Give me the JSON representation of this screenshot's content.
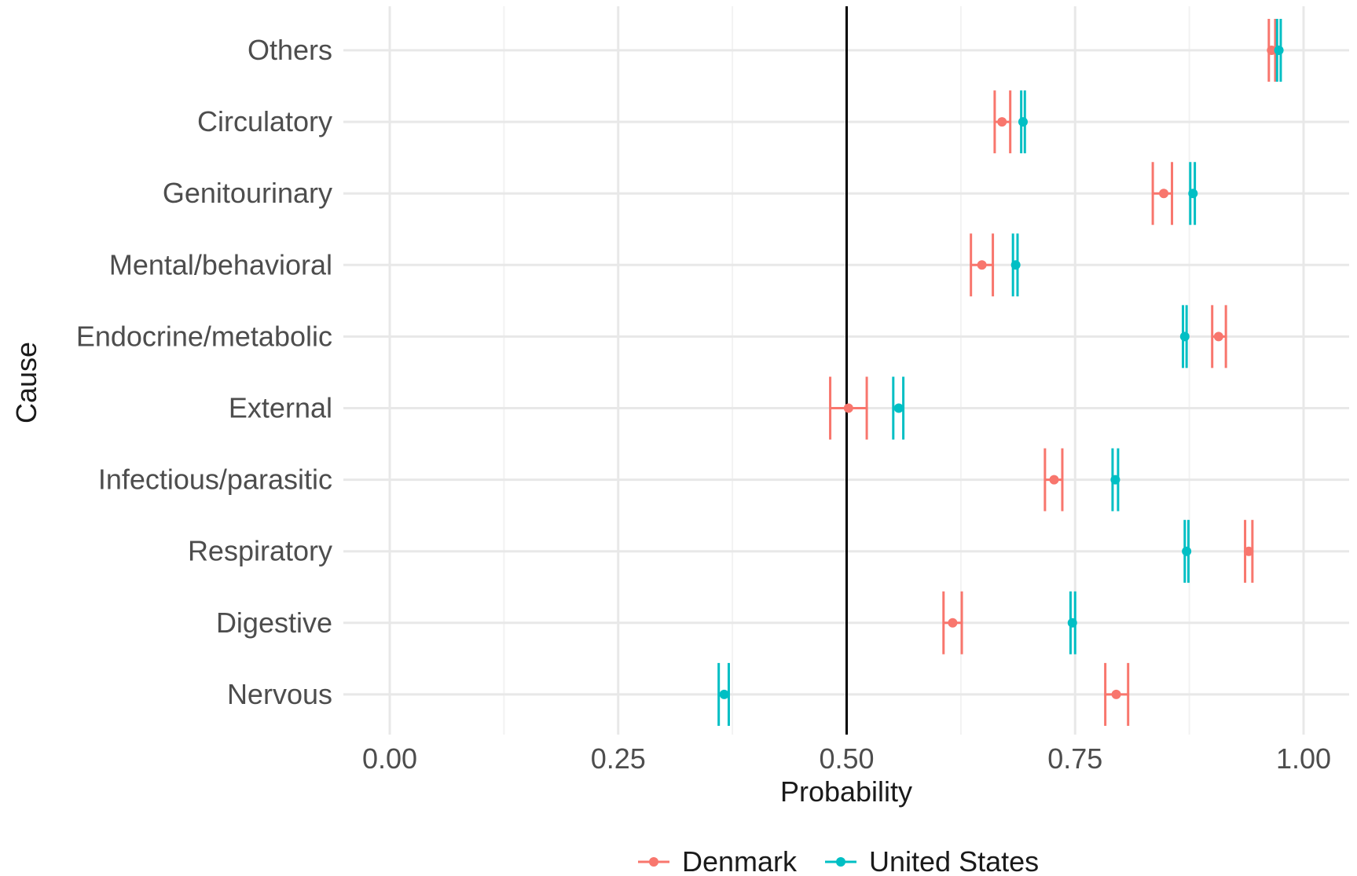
{
  "chart_data": {
    "type": "scatter",
    "subtype": "dot-with-error-bars",
    "orientation": "horizontal",
    "title": "",
    "xlabel": "Probability",
    "ylabel": "Cause",
    "xlim": [
      -0.05,
      1.05
    ],
    "x_ticks": [
      0.0,
      0.25,
      0.5,
      0.75,
      1.0
    ],
    "x_tick_labels": [
      "0.00",
      "0.25",
      "0.50",
      "0.75",
      "1.00"
    ],
    "reference_line": {
      "x": 0.5,
      "color": "#000000"
    },
    "categories": [
      "Others",
      "Circulatory",
      "Genitourinary",
      "Mental/behavioral",
      "Endocrine/metabolic",
      "External",
      "Infectious/parasitic",
      "Respiratory",
      "Digestive",
      "Nervous"
    ],
    "series": [
      {
        "name": "Denmark",
        "color": "#F8766D",
        "values": [
          0.965,
          0.67,
          0.847,
          0.648,
          0.907,
          0.502,
          0.727,
          0.94,
          0.616,
          0.795
        ],
        "lower": [
          0.962,
          0.662,
          0.835,
          0.636,
          0.9,
          0.482,
          0.717,
          0.936,
          0.606,
          0.783
        ],
        "upper": [
          0.969,
          0.679,
          0.856,
          0.66,
          0.915,
          0.522,
          0.736,
          0.944,
          0.626,
          0.808
        ]
      },
      {
        "name": "United States",
        "color": "#00BFC4",
        "values": [
          0.973,
          0.693,
          0.879,
          0.685,
          0.87,
          0.557,
          0.794,
          0.872,
          0.747,
          0.366
        ],
        "lower": [
          0.971,
          0.691,
          0.876,
          0.682,
          0.868,
          0.551,
          0.791,
          0.87,
          0.745,
          0.36
        ],
        "upper": [
          0.975,
          0.695,
          0.881,
          0.687,
          0.872,
          0.562,
          0.797,
          0.874,
          0.75,
          0.371
        ]
      }
    ],
    "grid": true,
    "legend_position": "bottom"
  }
}
